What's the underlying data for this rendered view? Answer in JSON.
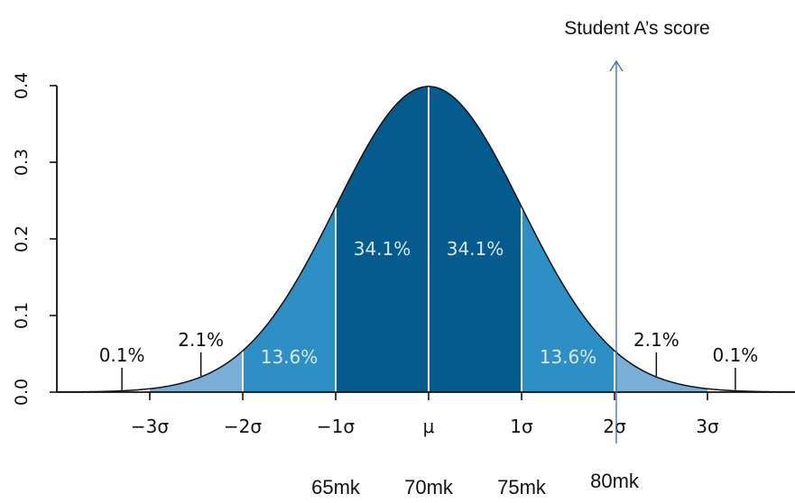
{
  "chart_data": {
    "type": "area",
    "title": "",
    "xlabel": "",
    "ylabel": "",
    "distribution": "standard normal density",
    "mean": 0,
    "sd": 1,
    "xlim": [
      -4,
      4
    ],
    "ylim": [
      0,
      0.4
    ],
    "yticks": [
      {
        "value": 0.0,
        "label": "0.0"
      },
      {
        "value": 0.1,
        "label": "0.1"
      },
      {
        "value": 0.2,
        "label": "0.2"
      },
      {
        "value": 0.3,
        "label": "0.3"
      },
      {
        "value": 0.4,
        "label": "0.4"
      }
    ],
    "xticks": [
      {
        "value": -3,
        "label": "−3σ"
      },
      {
        "value": -2,
        "label": "−2σ"
      },
      {
        "value": -1,
        "label": "−1σ"
      },
      {
        "value": 0,
        "label": "μ"
      },
      {
        "value": 1,
        "label": "1σ"
      },
      {
        "value": 2,
        "label": "2σ"
      },
      {
        "value": 3,
        "label": "3σ"
      }
    ],
    "regions": [
      {
        "from": -3,
        "to": -2,
        "percent": "2.1%",
        "color": "#7aaed6"
      },
      {
        "from": -2,
        "to": -1,
        "percent": "13.6%",
        "color": "#2e8fc4"
      },
      {
        "from": -1,
        "to": 0,
        "percent": "34.1%",
        "color": "#055a8e"
      },
      {
        "from": 0,
        "to": 1,
        "percent": "34.1%",
        "color": "#055a8e"
      },
      {
        "from": 1,
        "to": 2,
        "percent": "13.6%",
        "color": "#2e8fc4"
      },
      {
        "from": 2,
        "to": 3,
        "percent": "2.1%",
        "color": "#7aaed6"
      }
    ],
    "tail_labels": [
      {
        "x": -3.3,
        "label": "0.1%"
      },
      {
        "x": -2.45,
        "label": "2.1%"
      },
      {
        "x": 2.45,
        "label": "2.1%"
      },
      {
        "x": 3.3,
        "label": "0.1%"
      }
    ],
    "score_labels": [
      {
        "x": -1,
        "label": "65mk"
      },
      {
        "x": 0,
        "label": "70mk"
      },
      {
        "x": 1,
        "label": "75mk"
      },
      {
        "x": 2,
        "label": "80mk"
      }
    ],
    "annotation": {
      "x": 2,
      "label": "Student A’s score",
      "color": "#3c6cb4"
    },
    "text_color_dark": "#111111",
    "text_color_light": "#d8e8f4"
  }
}
